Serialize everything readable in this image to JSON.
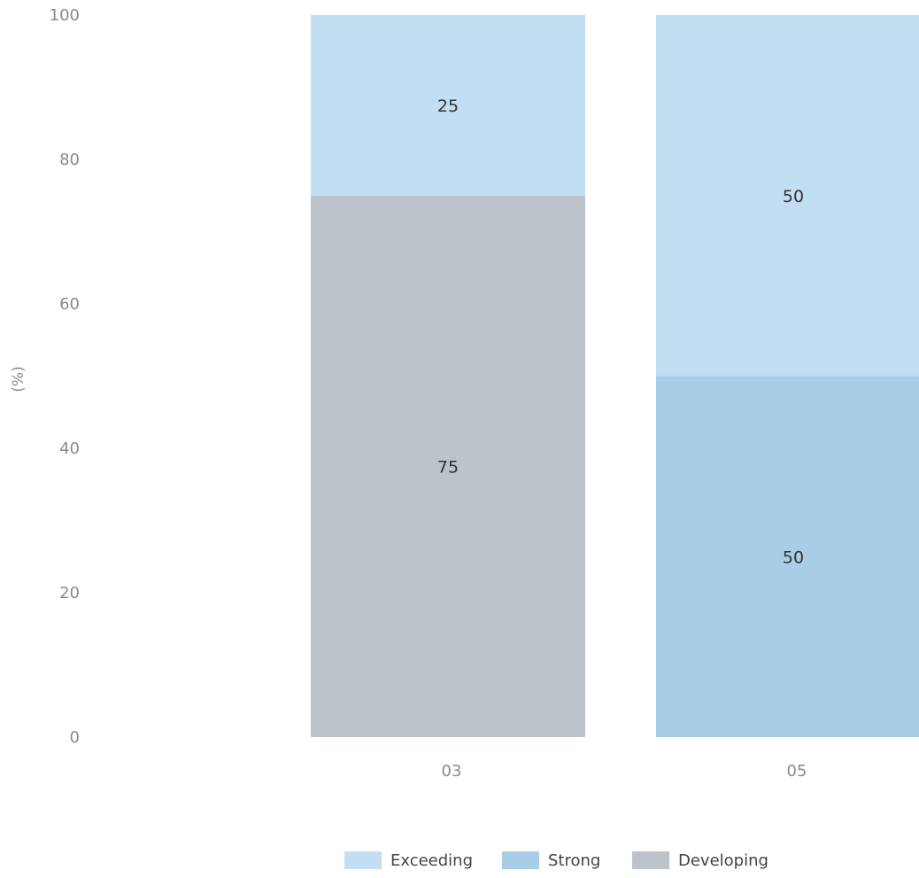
{
  "chart_data": {
    "type": "bar",
    "stacked": true,
    "categories": [
      "03",
      "05"
    ],
    "series": [
      {
        "name": "Exceeding",
        "values": [
          25,
          50
        ],
        "color": "#c1def3"
      },
      {
        "name": "Strong",
        "values": [
          0,
          50
        ],
        "color": "#aacde7"
      },
      {
        "name": "Developing",
        "values": [
          75,
          0
        ],
        "color": "#bcc3cb"
      }
    ],
    "ylabel": "(%)",
    "xlabel": "",
    "ylim": [
      0,
      100
    ],
    "yticks": [
      0,
      20,
      40,
      60,
      80,
      100
    ],
    "grid": false,
    "legend_position": "bottom",
    "data_labels": true
  },
  "colors": {
    "tick_text": "#8a8a8a",
    "label_text": "#333333",
    "legend_text": "#444444"
  }
}
